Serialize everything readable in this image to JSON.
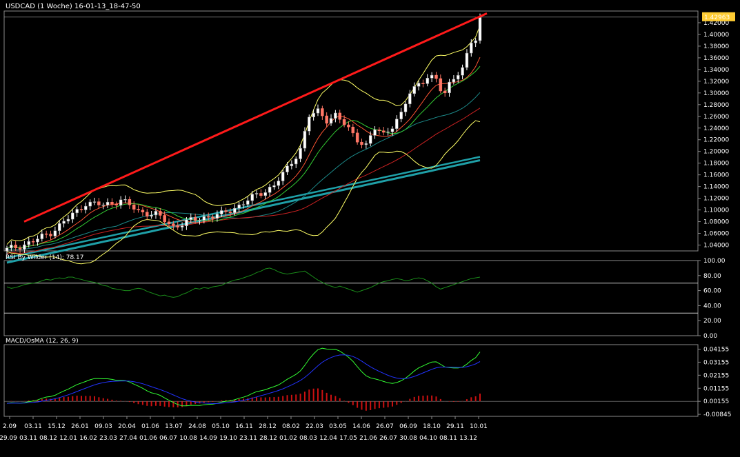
{
  "colors": {
    "background": "#000000",
    "bull_candle": "#ffffff",
    "bear_candle": "#ff7766",
    "trendline": "#ff1a1a",
    "bollinger": "#ffff66",
    "ma_fast": "#ff5533",
    "ma_mid": "#33cc33",
    "ma_slow_thin": "#1c8a8a",
    "ma_red_long": "#cc2222",
    "ma_teal_thick1": "#1fa0a8",
    "ma_teal_thick2": "#1fa0a8",
    "rsi_line": "#1a8c1a",
    "macd_line": "#33ff33",
    "signal_line": "#2233ff",
    "osma_bar": "#cc1111",
    "price_badge": "#ffcc33"
  },
  "chart_data": [
    {
      "type": "candlestick",
      "title": "USDCAD (1 Woche) 16-01-13_18-47-50",
      "price_label": "1.42963",
      "ylim": [
        1.03,
        1.44
      ],
      "y_ticks": [
        "1.42000",
        "1.40000",
        "1.38000",
        "1.36000",
        "1.34000",
        "1.32000",
        "1.30000",
        "1.28000",
        "1.26000",
        "1.24000",
        "1.22000",
        "1.20000",
        "1.18000",
        "1.16000",
        "1.14000",
        "1.12000",
        "1.10000",
        "1.08000",
        "1.06000",
        "1.04000"
      ],
      "x_ticks_top": [
        "2.09",
        "03.11",
        "15.12",
        "26.01",
        "09.03",
        "20.04",
        "01.06",
        "13.07",
        "24.08",
        "05.10",
        "16.11",
        "28.12",
        "08.02",
        "22.03",
        "03.05",
        "14.06",
        "26.07",
        "06.09",
        "18.10",
        "29.11",
        "10.01"
      ],
      "x_ticks_bottom": [
        "29.09",
        "03.11",
        "08.12",
        "12.01",
        "16.02",
        "23.03",
        "27.04",
        "01.06",
        "06.07",
        "10.08",
        "14.09",
        "19.10",
        "23.11",
        "28.12",
        "01.02",
        "08.03",
        "12.04",
        "17.05",
        "21.06",
        "26.07",
        "30.08",
        "04.10",
        "08.11",
        "13.12"
      ],
      "series": [
        {
          "name": "USDCAD",
          "values": []
        }
      ]
    },
    {
      "type": "line",
      "title": "RSI By Wilder (14): 78.17",
      "ylim": [
        0,
        100
      ],
      "y_ticks": [
        "100.00",
        "80.00",
        "60.00",
        "40.00",
        "20.00",
        "0.00"
      ],
      "levels": [
        70,
        30
      ],
      "series": [
        {
          "values": [
            65,
            63,
            64,
            66,
            68,
            69,
            70,
            71,
            73,
            75,
            74,
            76,
            77,
            76,
            78,
            78,
            76,
            75,
            73,
            72,
            71,
            69,
            67,
            66,
            63,
            62,
            61,
            60,
            60,
            62,
            63,
            62,
            59,
            57,
            55,
            53,
            54,
            52,
            51,
            52,
            55,
            57,
            60,
            63,
            62,
            64,
            63,
            65,
            66,
            67,
            70,
            72,
            74,
            75,
            77,
            79,
            81,
            84,
            86,
            89,
            90,
            88,
            85,
            83,
            82,
            83,
            84,
            85,
            86,
            82,
            78,
            74,
            71,
            68,
            66,
            64,
            66,
            64,
            62,
            60,
            58,
            60,
            62,
            64,
            67,
            70,
            72,
            73,
            75,
            76,
            75,
            73,
            74,
            76,
            77,
            76,
            73,
            70,
            65,
            62,
            64,
            66,
            68,
            70,
            72,
            74,
            76,
            77,
            78
          ]
        }
      ]
    },
    {
      "type": "line",
      "title": "MACD/OsMA (12, 26, 9)",
      "ylim": [
        -0.01,
        0.045
      ],
      "y_ticks": [
        "0.04155",
        "0.03155",
        "0.02155",
        "0.01155",
        "0.00155",
        "-0.00845"
      ],
      "series": [
        {
          "name": "MACD",
          "values": []
        },
        {
          "name": "Signal",
          "values": []
        },
        {
          "name": "OsMA",
          "values": []
        }
      ]
    }
  ]
}
